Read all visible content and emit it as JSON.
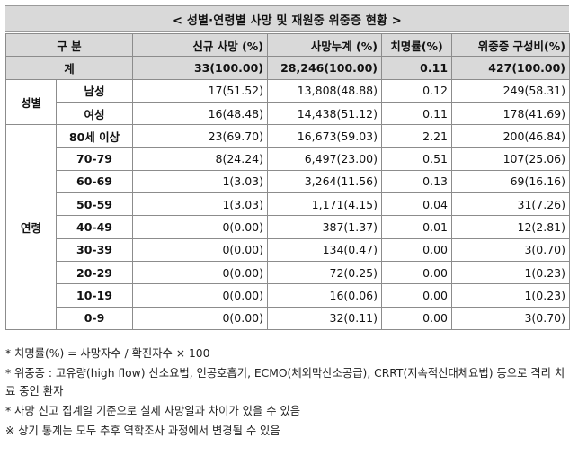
{
  "title": "< 성별·연령별 사망 및 재원중 위중증 현황 >",
  "headers": {
    "category": "구  분",
    "new_deaths": "신규 사망        (%)",
    "cumulative": "사망누계       (%)",
    "fatality": "치명률(%)",
    "critical": "위중증   구성비(%)"
  },
  "total": {
    "label": "계",
    "new_deaths": "33(100.00)",
    "cumulative": "28,246(100.00)",
    "fatality": "0.11",
    "critical": "427(100.00)"
  },
  "sex": {
    "group_label": "성별",
    "rows": [
      {
        "label": "남성",
        "new_deaths": "17(51.52)",
        "cumulative": "13,808(48.88)",
        "fatality": "0.12",
        "critical": "249(58.31)"
      },
      {
        "label": "여성",
        "new_deaths": "16(48.48)",
        "cumulative": "14,438(51.12)",
        "fatality": "0.11",
        "critical": "178(41.69)"
      }
    ]
  },
  "age": {
    "group_label": "연령",
    "rows": [
      {
        "label": "80세 이상",
        "new_deaths": "23(69.70)",
        "cumulative": "16,673(59.03)",
        "fatality": "2.21",
        "critical": "200(46.84)"
      },
      {
        "label": "70-79",
        "new_deaths": "8(24.24)",
        "cumulative": "6,497(23.00)",
        "fatality": "0.51",
        "critical": "107(25.06)"
      },
      {
        "label": "60-69",
        "new_deaths": "1(3.03)",
        "cumulative": "3,264(11.56)",
        "fatality": "0.13",
        "critical": "69(16.16)"
      },
      {
        "label": "50-59",
        "new_deaths": "1(3.03)",
        "cumulative": "1,171(4.15)",
        "fatality": "0.04",
        "critical": "31(7.26)"
      },
      {
        "label": "40-49",
        "new_deaths": "0(0.00)",
        "cumulative": "387(1.37)",
        "fatality": "0.01",
        "critical": "12(2.81)"
      },
      {
        "label": "30-39",
        "new_deaths": "0(0.00)",
        "cumulative": "134(0.47)",
        "fatality": "0.00",
        "critical": "3(0.70)"
      },
      {
        "label": "20-29",
        "new_deaths": "0(0.00)",
        "cumulative": "72(0.25)",
        "fatality": "0.00",
        "critical": "1(0.23)"
      },
      {
        "label": "10-19",
        "new_deaths": "0(0.00)",
        "cumulative": "16(0.06)",
        "fatality": "0.00",
        "critical": "1(0.23)"
      },
      {
        "label": "0-9",
        "new_deaths": "0(0.00)",
        "cumulative": "32(0.11)",
        "fatality": "0.00",
        "critical": "3(0.70)"
      }
    ]
  },
  "notes": [
    "* 치명률(%) = 사망자수 / 확진자수 × 100",
    "* 위중증 : 고유량(high flow) 산소요법, 인공호흡기, ECMO(체외막산소공급), CRRT(지속적신대체요법) 등으로 격리 치료 중인 환자",
    "* 사망 신고 집계일 기준으로 실제 사망일과 차이가 있을 수 있음",
    "※ 상기 통계는 모두 추후 역학조사 과정에서 변경될 수 있음"
  ],
  "colors": {
    "header_bg": "#d9d9d9",
    "border": "#8c8c8c"
  }
}
